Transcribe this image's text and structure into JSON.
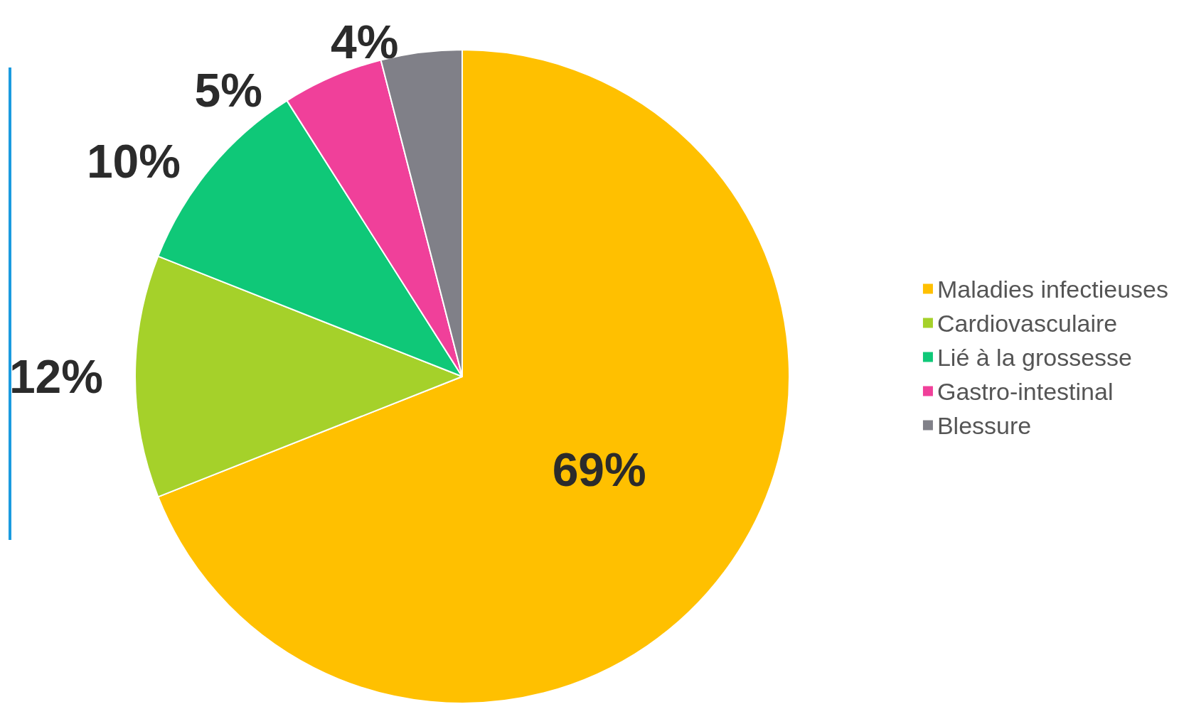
{
  "chart_data": {
    "type": "pie",
    "categories": [
      "Maladies infectieuses",
      "Cardiovasculaire",
      "Lié à la grossesse",
      "Gastro-intestinal",
      "Blessure"
    ],
    "values": [
      69,
      12,
      10,
      5,
      4
    ],
    "colors": [
      "#ffc000",
      "#a5d12a",
      "#0fc878",
      "#f0409a",
      "#808088"
    ],
    "value_labels": [
      "69%",
      "12%",
      "10%",
      "5%",
      "4%"
    ],
    "legend": "right"
  }
}
